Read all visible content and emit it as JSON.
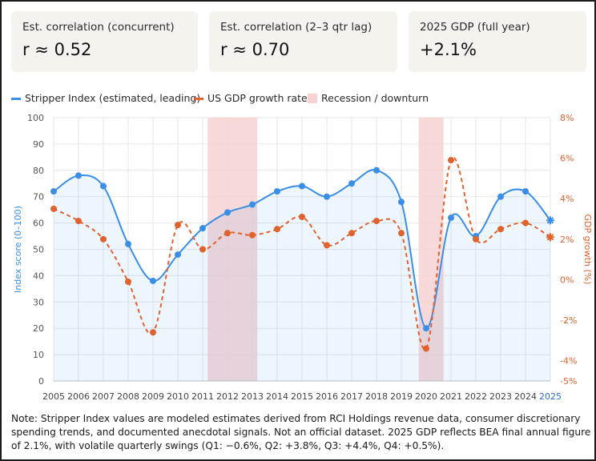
{
  "cards": [
    {
      "label": "Est. correlation (concurrent)",
      "value": "r ≈ 0.52"
    },
    {
      "label": "Est. correlation (2–3 qtr lag)",
      "value": "r ≈ 0.70"
    },
    {
      "label": "2025 GDP (full year)",
      "value": "+2.1%"
    }
  ],
  "legend": {
    "stripper": "Stripper Index (estimated, leading)",
    "gdp": "US GDP growth rate",
    "recession": "Recession / downturn"
  },
  "colors": {
    "stripper": "#3a8ee6",
    "gdp": "#e0622e",
    "recession": "#f6d2d2",
    "grid": "#e6e6e6"
  },
  "chart_data": {
    "type": "line",
    "x": [
      2005,
      2006,
      2007,
      2008,
      2009,
      2010,
      2011,
      2012,
      2013,
      2014,
      2015,
      2016,
      2017,
      2018,
      2019,
      2020,
      2021,
      2022,
      2023,
      2024,
      2025
    ],
    "xticklabels": [
      "2005",
      "2006",
      "2007",
      "2008",
      "2009",
      "2010",
      "2011",
      "2012",
      "2013",
      "2014",
      "2015",
      "2016",
      "2017",
      "2018",
      "2019",
      "2020",
      "2021",
      "2022",
      "2023",
      "2024",
      "2025"
    ],
    "series": [
      {
        "name": "Stripper Index (estimated, leading)",
        "axis": "left",
        "style": "solid line with filled area",
        "values": [
          72,
          78,
          74,
          52,
          38,
          48,
          58,
          64,
          67,
          72,
          74,
          70,
          75,
          80,
          68,
          20,
          62,
          55,
          70,
          72,
          61
        ]
      },
      {
        "name": "US GDP growth rate",
        "axis": "right",
        "style": "dashed line",
        "values": [
          3.5,
          2.9,
          2.0,
          -0.1,
          -2.6,
          2.7,
          1.5,
          2.3,
          2.2,
          2.5,
          3.1,
          1.7,
          2.3,
          2.9,
          2.3,
          -3.4,
          5.9,
          2.0,
          2.5,
          2.8,
          2.1
        ]
      }
    ],
    "recession_shading": [
      {
        "start": 2011.2,
        "end": 2013.2
      },
      {
        "start": 2019.7,
        "end": 2020.7
      }
    ],
    "y_left": {
      "label": "Index score (0–100)",
      "ylim": [
        0,
        100
      ],
      "ticks": [
        "0",
        "10",
        "20",
        "30",
        "40",
        "50",
        "60",
        "70",
        "80",
        "90",
        "100"
      ]
    },
    "y_right": {
      "label": "GDP growth (%)",
      "ylim": [
        -5,
        8
      ],
      "ticks": [
        "-5%",
        "-4%",
        "-2%",
        "0%",
        "2%",
        "4%",
        "6%",
        "8%"
      ]
    },
    "grid": true,
    "legend_position": "top"
  },
  "note": "Note: Stripper Index values are modeled estimates derived from RCI Holdings revenue data, consumer discretionary spending trends, and documented anecdotal signals. Not an official dataset. 2025 GDP reflects BEA final annual figure of 2.1%, with volatile quarterly swings (Q1: −0.6%, Q2: +3.8%, Q3: +4.4%, Q4: +0.5%)."
}
